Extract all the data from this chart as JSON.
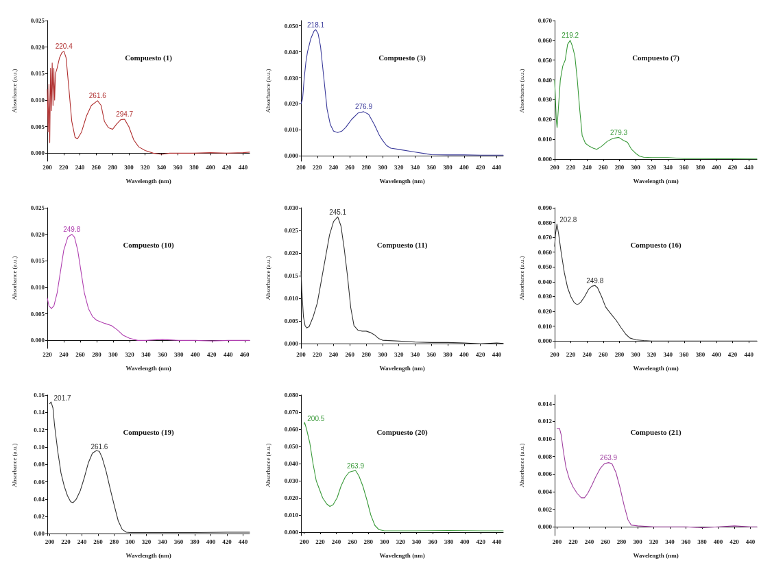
{
  "chart_data": [
    {
      "type": "line",
      "title": "Compuesto (1)",
      "xlabel": "Wavelength (nm)",
      "ylabel": "Absorbance (a.u.)",
      "xlim": [
        200,
        448
      ],
      "xticks": [
        200,
        220,
        240,
        260,
        280,
        300,
        320,
        340,
        360,
        380,
        400,
        420,
        440
      ],
      "ylim": [
        -0.0015,
        0.025
      ],
      "yticks": [
        {
          "value": 0,
          "label": "0.000"
        },
        0.005,
        {
          "value": 0.01,
          "label": "0.010"
        },
        0.015,
        {
          "value": 0.02,
          "label": "0.020"
        },
        0.025
      ],
      "series": [
        {
          "color": "#b03030",
          "x": [
            200,
            201,
            202,
            203,
            204,
            205,
            206,
            207,
            208,
            209,
            210,
            212,
            215,
            218,
            220.4,
            223,
            226,
            230,
            234,
            237,
            242,
            248,
            254,
            261.6,
            266,
            270,
            275,
            280,
            285,
            290,
            294.7,
            300,
            306,
            312,
            320,
            330,
            340,
            350,
            360,
            380,
            400,
            420,
            440,
            448
          ],
          "values": [
            0.012,
            0.004,
            0.013,
            0.002,
            0.016,
            0.008,
            0.017,
            0.009,
            0.016,
            0.01,
            0.015,
            0.016,
            0.018,
            0.019,
            0.0192,
            0.018,
            0.013,
            0.006,
            0.003,
            0.0027,
            0.004,
            0.007,
            0.009,
            0.0099,
            0.009,
            0.006,
            0.0048,
            0.0045,
            0.0055,
            0.0063,
            0.0064,
            0.005,
            0.0025,
            0.0012,
            0.0005,
            0,
            -0.0002,
            0,
            0,
            0,
            0.0001,
            0,
            0.0001,
            0.0002
          ]
        }
      ],
      "annotations": [
        {
          "text": "220.4",
          "x": 220.4,
          "y": 0.0192
        },
        {
          "text": "261.6",
          "x": 261.6,
          "y": 0.0099
        },
        {
          "text": "294.7",
          "x": 294.7,
          "y": 0.0064
        }
      ]
    },
    {
      "type": "line",
      "title": "Compuesto (3)",
      "xlabel": "Wavelength (nm)",
      "ylabel": "Absorbance (a.u.)",
      "xlim": [
        200,
        448
      ],
      "xticks": [
        200,
        220,
        240,
        260,
        280,
        300,
        320,
        340,
        360,
        380,
        400,
        420,
        440
      ],
      "ylim": [
        -0.002,
        0.052
      ],
      "yticks": [
        {
          "value": 0,
          "label": "0.000"
        },
        {
          "value": 0.01,
          "label": "0.010"
        },
        {
          "value": 0.02,
          "label": "0.020"
        },
        {
          "value": 0.03,
          "label": "0.030"
        },
        {
          "value": 0.04,
          "label": "0.040"
        },
        {
          "value": 0.05,
          "label": "0.050"
        }
      ],
      "series": [
        {
          "color": "#3a3a9a",
          "x": [
            200,
            202,
            204,
            206,
            208,
            212,
            216,
            218.1,
            221,
            224,
            228,
            232,
            236,
            240,
            245,
            250,
            255,
            262,
            270,
            276.9,
            283,
            290,
            296,
            300,
            305,
            310,
            320,
            340,
            350,
            360,
            380,
            400,
            420,
            440,
            448
          ],
          "values": [
            0.02,
            0.022,
            0.03,
            0.036,
            0.04,
            0.045,
            0.048,
            0.0485,
            0.047,
            0.042,
            0.03,
            0.018,
            0.012,
            0.0095,
            0.009,
            0.0095,
            0.011,
            0.014,
            0.0165,
            0.017,
            0.016,
            0.012,
            0.008,
            0.006,
            0.004,
            0.003,
            0.0025,
            0.0015,
            0.001,
            0.0005,
            0.0004,
            0.0004,
            0.0003,
            0.0003,
            0.0003
          ]
        }
      ],
      "annotations": [
        {
          "text": "218.1",
          "x": 218.1,
          "y": 0.0485
        },
        {
          "text": "276.9",
          "x": 276.9,
          "y": 0.017
        }
      ]
    },
    {
      "type": "line",
      "title": "Compuesto (7)",
      "xlabel": "Wavelength (nm)",
      "ylabel": "Absorbance (a.u.)",
      "xlim": [
        200,
        450
      ],
      "xticks": [
        200,
        220,
        240,
        260,
        280,
        300,
        320,
        340,
        360,
        380,
        400,
        420,
        440
      ],
      "ylim": [
        -0.001,
        0.07
      ],
      "yticks": [
        {
          "value": 0,
          "label": "0.000"
        },
        {
          "value": 0.01,
          "label": "0.010"
        },
        {
          "value": 0.02,
          "label": "0.020"
        },
        {
          "value": 0.03,
          "label": "0.030"
        },
        {
          "value": 0.04,
          "label": "0.040"
        },
        {
          "value": 0.05,
          "label": "0.050"
        },
        {
          "value": 0.06,
          "label": "0.060"
        },
        {
          "value": 0.07,
          "label": "0.070"
        }
      ],
      "series": [
        {
          "color": "#3a9a3a",
          "x": [
            200,
            201,
            202,
            203,
            205,
            207,
            210,
            213,
            216,
            219.2,
            222,
            225,
            228,
            231,
            234,
            238,
            243,
            248,
            252,
            258,
            265,
            272,
            279.3,
            285,
            290,
            295,
            300,
            305,
            310,
            320,
            340,
            360,
            380,
            400,
            420,
            450
          ],
          "values": [
            0.04,
            0.03,
            0.02,
            0.016,
            0.028,
            0.04,
            0.047,
            0.05,
            0.058,
            0.06,
            0.057,
            0.052,
            0.04,
            0.025,
            0.012,
            0.008,
            0.0065,
            0.0055,
            0.005,
            0.0065,
            0.009,
            0.0105,
            0.011,
            0.0095,
            0.0085,
            0.005,
            0.003,
            0.0015,
            0.001,
            0.0008,
            0.0008,
            0.0003,
            0.0003,
            0.0002,
            0.0002,
            0.0001
          ]
        }
      ],
      "annotations": [
        {
          "text": "219.2",
          "x": 219.2,
          "y": 0.06
        },
        {
          "text": "279.3",
          "x": 279.3,
          "y": 0.011
        }
      ]
    },
    {
      "type": "line",
      "title": "Compuesto (10)",
      "xlabel": "Wavelength (nm)",
      "ylabel": "Absorbance (a.u.)",
      "xlim": [
        220,
        466
      ],
      "xticks": [
        220,
        240,
        260,
        280,
        300,
        320,
        340,
        360,
        380,
        400,
        420,
        440,
        460
      ],
      "ylim": [
        -0.0015,
        0.025
      ],
      "yticks": [
        {
          "value": 0,
          "label": "0.000"
        },
        0.005,
        {
          "value": 0.01,
          "label": "0.010"
        },
        0.015,
        {
          "value": 0.02,
          "label": "0.020"
        },
        0.025
      ],
      "series": [
        {
          "color": "#b040b0",
          "x": [
            220,
            222,
            225,
            228,
            232,
            236,
            240,
            245,
            249.8,
            253,
            257,
            261,
            265,
            270,
            275,
            280,
            290,
            298,
            305,
            312,
            320,
            330,
            340,
            360,
            380,
            400,
            420,
            440,
            466
          ],
          "values": [
            0.008,
            0.0065,
            0.006,
            0.0065,
            0.009,
            0.013,
            0.017,
            0.0195,
            0.02,
            0.0195,
            0.017,
            0.013,
            0.009,
            0.006,
            0.0045,
            0.0038,
            0.0032,
            0.0028,
            0.002,
            0.001,
            0.0004,
            0,
            0,
            0.0002,
            0,
            0,
            -0.0001,
            0,
            0
          ]
        }
      ],
      "annotations": [
        {
          "text": "249.8",
          "x": 249.8,
          "y": 0.02
        }
      ]
    },
    {
      "type": "line",
      "title": "Compuesto (11)",
      "xlabel": "Wavelength (nm)",
      "ylabel": "Absorbance (a.u.)",
      "xlim": [
        200,
        448
      ],
      "xticks": [
        200,
        220,
        240,
        260,
        280,
        300,
        320,
        340,
        360,
        380,
        400,
        420,
        440
      ],
      "ylim": [
        -0.001,
        0.03
      ],
      "yticks": [
        {
          "value": 0,
          "label": "0.000"
        },
        0.005,
        {
          "value": 0.01,
          "label": "0.010"
        },
        0.015,
        {
          "value": 0.02,
          "label": "0.020"
        },
        0.025,
        {
          "value": 0.03,
          "label": "0.030"
        }
      ],
      "series": [
        {
          "color": "#333333",
          "x": [
            200,
            201,
            203,
            205,
            207,
            210,
            215,
            220,
            225,
            230,
            235,
            240,
            245.1,
            249,
            253,
            257,
            261,
            265,
            270,
            275,
            280,
            285,
            290,
            295,
            300,
            320,
            340,
            360,
            380,
            400,
            420,
            440,
            448
          ],
          "values": [
            0.016,
            0.012,
            0.006,
            0.004,
            0.0035,
            0.0038,
            0.006,
            0.009,
            0.014,
            0.019,
            0.024,
            0.027,
            0.028,
            0.026,
            0.021,
            0.015,
            0.008,
            0.004,
            0.003,
            0.0028,
            0.0028,
            0.0025,
            0.002,
            0.0012,
            0.0008,
            0.0006,
            0.0004,
            0.0003,
            0.0003,
            0.0002,
            0,
            0.0002,
            0.0001
          ]
        }
      ],
      "annotations": [
        {
          "text": "245.1",
          "x": 245.1,
          "y": 0.028
        }
      ]
    },
    {
      "type": "line",
      "title": "Compuesto (16)",
      "xlabel": "Wavelength (nm)",
      "ylabel": "Absorbance (a.u.)",
      "xlim": [
        200,
        450
      ],
      "xticks": [
        200,
        220,
        240,
        260,
        280,
        300,
        320,
        340,
        360,
        380,
        400,
        420,
        440
      ],
      "ylim": [
        -0.005,
        0.09
      ],
      "yticks": [
        {
          "value": 0,
          "label": "0.000"
        },
        {
          "value": 0.01,
          "label": "0.010"
        },
        {
          "value": 0.02,
          "label": "0.020"
        },
        {
          "value": 0.03,
          "label": "0.030"
        },
        {
          "value": 0.04,
          "label": "0.040"
        },
        {
          "value": 0.05,
          "label": "0.050"
        },
        {
          "value": 0.06,
          "label": "0.060"
        },
        {
          "value": 0.07,
          "label": "0.070"
        },
        {
          "value": 0.08,
          "label": "0.080"
        },
        {
          "value": 0.09,
          "label": "0.090"
        }
      ],
      "series": [
        {
          "color": "#333333",
          "x": [
            200,
            201,
            202.8,
            205,
            208,
            212,
            216,
            220,
            224,
            228,
            232,
            237,
            242,
            246,
            249.8,
            253,
            258,
            263,
            270,
            276,
            282,
            288,
            293,
            300,
            310,
            320,
            340,
            380,
            420,
            450
          ],
          "values": [
            0.064,
            0.072,
            0.079,
            0.072,
            0.06,
            0.046,
            0.036,
            0.03,
            0.026,
            0.0245,
            0.026,
            0.03,
            0.035,
            0.037,
            0.0375,
            0.036,
            0.03,
            0.023,
            0.018,
            0.014,
            0.009,
            0.0045,
            0.002,
            0.0008,
            0.0003,
            0,
            0,
            0,
            0,
            0
          ]
        }
      ],
      "annotations": [
        {
          "text": "202.8",
          "x": 202.8,
          "y": 0.079
        },
        {
          "text": "249.8",
          "x": 249.8,
          "y": 0.0375
        }
      ]
    },
    {
      "type": "line",
      "title": "Compuesto (19)",
      "xlabel": "Wavelength (nm)",
      "ylabel": "Absorbance (a.u.)",
      "xlim": [
        197,
        448
      ],
      "xticks": [
        200,
        220,
        240,
        260,
        280,
        300,
        320,
        340,
        360,
        380,
        400,
        420,
        440
      ],
      "ylim": [
        -0.002,
        0.16
      ],
      "yticks": [
        {
          "value": 0,
          "label": "0.00"
        },
        0.02,
        0.04,
        0.06,
        0.08,
        {
          "value": 0.1,
          "label": "0.10"
        },
        0.12,
        0.14,
        0.16
      ],
      "series": [
        {
          "color": "#333333",
          "x": [
            200,
            201.7,
            204,
            206,
            208,
            210,
            214,
            218,
            222,
            226,
            229,
            233,
            238,
            243,
            248,
            253,
            258,
            261.6,
            265,
            270,
            275,
            280,
            285,
            290,
            295,
            300,
            340,
            380,
            420,
            448
          ],
          "values": [
            0.15,
            0.152,
            0.145,
            0.125,
            0.11,
            0.095,
            0.07,
            0.055,
            0.044,
            0.037,
            0.036,
            0.04,
            0.05,
            0.065,
            0.082,
            0.093,
            0.096,
            0.095,
            0.088,
            0.072,
            0.052,
            0.033,
            0.015,
            0.005,
            0.002,
            0.0015,
            0.0015,
            0.0015,
            0.002,
            0.002
          ]
        }
      ],
      "annotations": [
        {
          "text": "201.7",
          "x": 201.7,
          "y": 0.152
        },
        {
          "text": "261.6",
          "x": 261.6,
          "y": 0.095
        }
      ]
    },
    {
      "type": "line",
      "title": "Compuesto (20)",
      "xlabel": "Wavelength (nm)",
      "ylabel": "Absorbance (a.u.)",
      "xlim": [
        196,
        448
      ],
      "xticks": [
        200,
        220,
        240,
        260,
        280,
        300,
        320,
        340,
        360,
        380,
        400,
        420,
        440
      ],
      "ylim": [
        -0.002,
        0.08
      ],
      "yticks": [
        {
          "value": 0,
          "label": "0.000"
        },
        {
          "value": 0.01,
          "label": "0.010"
        },
        {
          "value": 0.02,
          "label": "0.020"
        },
        {
          "value": 0.03,
          "label": "0.030"
        },
        {
          "value": 0.04,
          "label": "0.040"
        },
        {
          "value": 0.05,
          "label": "0.050"
        },
        {
          "value": 0.06,
          "label": "0.060"
        },
        {
          "value": 0.07,
          "label": "0.070"
        },
        {
          "value": 0.08,
          "label": "0.080"
        }
      ],
      "series": [
        {
          "color": "#3a9a3a",
          "x": [
            200,
            200.5,
            203,
            207,
            211,
            215,
            219,
            223,
            228,
            232,
            236,
            241,
            246,
            251,
            256,
            263.9,
            268,
            273,
            278,
            283,
            288,
            293,
            300,
            340,
            380,
            420,
            448
          ],
          "values": [
            0.063,
            0.064,
            0.06,
            0.052,
            0.04,
            0.03,
            0.025,
            0.02,
            0.0165,
            0.015,
            0.016,
            0.02,
            0.027,
            0.032,
            0.035,
            0.036,
            0.033,
            0.027,
            0.019,
            0.01,
            0.004,
            0.0015,
            0.0008,
            0.0008,
            0.001,
            0.0008,
            0.0008
          ]
        }
      ],
      "annotations": [
        {
          "text": "200.5",
          "x": 200.5,
          "y": 0.064
        },
        {
          "text": "263.9",
          "x": 263.9,
          "y": 0.036
        }
      ]
    },
    {
      "type": "line",
      "title": "Compuesto (21)",
      "xlabel": "Wavelength (nm)",
      "ylabel": "Absorbance (a.u.)",
      "xlim": [
        197,
        448
      ],
      "xticks": [
        200,
        220,
        240,
        260,
        280,
        300,
        320,
        340,
        360,
        380,
        400,
        420,
        440
      ],
      "ylim": [
        -0.001,
        0.015
      ],
      "yticks": [
        {
          "value": 0,
          "label": "0.000"
        },
        0.002,
        0.004,
        0.006,
        0.008,
        {
          "value": 0.01,
          "label": "0.010"
        },
        0.012,
        0.014
      ],
      "series": [
        {
          "color": "#a040a0",
          "x": [
            200,
            203,
            205,
            208,
            211,
            215,
            220,
            225,
            230,
            234,
            238,
            243,
            248,
            254,
            259,
            263.9,
            268,
            273,
            278,
            283,
            288,
            292,
            300,
            320,
            340,
            360,
            380,
            400,
            420,
            440,
            448
          ],
          "values": [
            0.0112,
            0.0112,
            0.0105,
            0.0085,
            0.0068,
            0.0055,
            0.0045,
            0.0038,
            0.0033,
            0.0033,
            0.0038,
            0.0047,
            0.0057,
            0.0067,
            0.0072,
            0.0073,
            0.0072,
            0.0062,
            0.0045,
            0.0025,
            0.0008,
            0.0002,
            0.0001,
            0,
            0,
            0,
            -0.0001,
            0,
            0.0001,
            0,
            0
          ]
        }
      ],
      "annotations": [
        {
          "text": "263.9",
          "x": 263.9,
          "y": 0.0073
        }
      ]
    }
  ]
}
